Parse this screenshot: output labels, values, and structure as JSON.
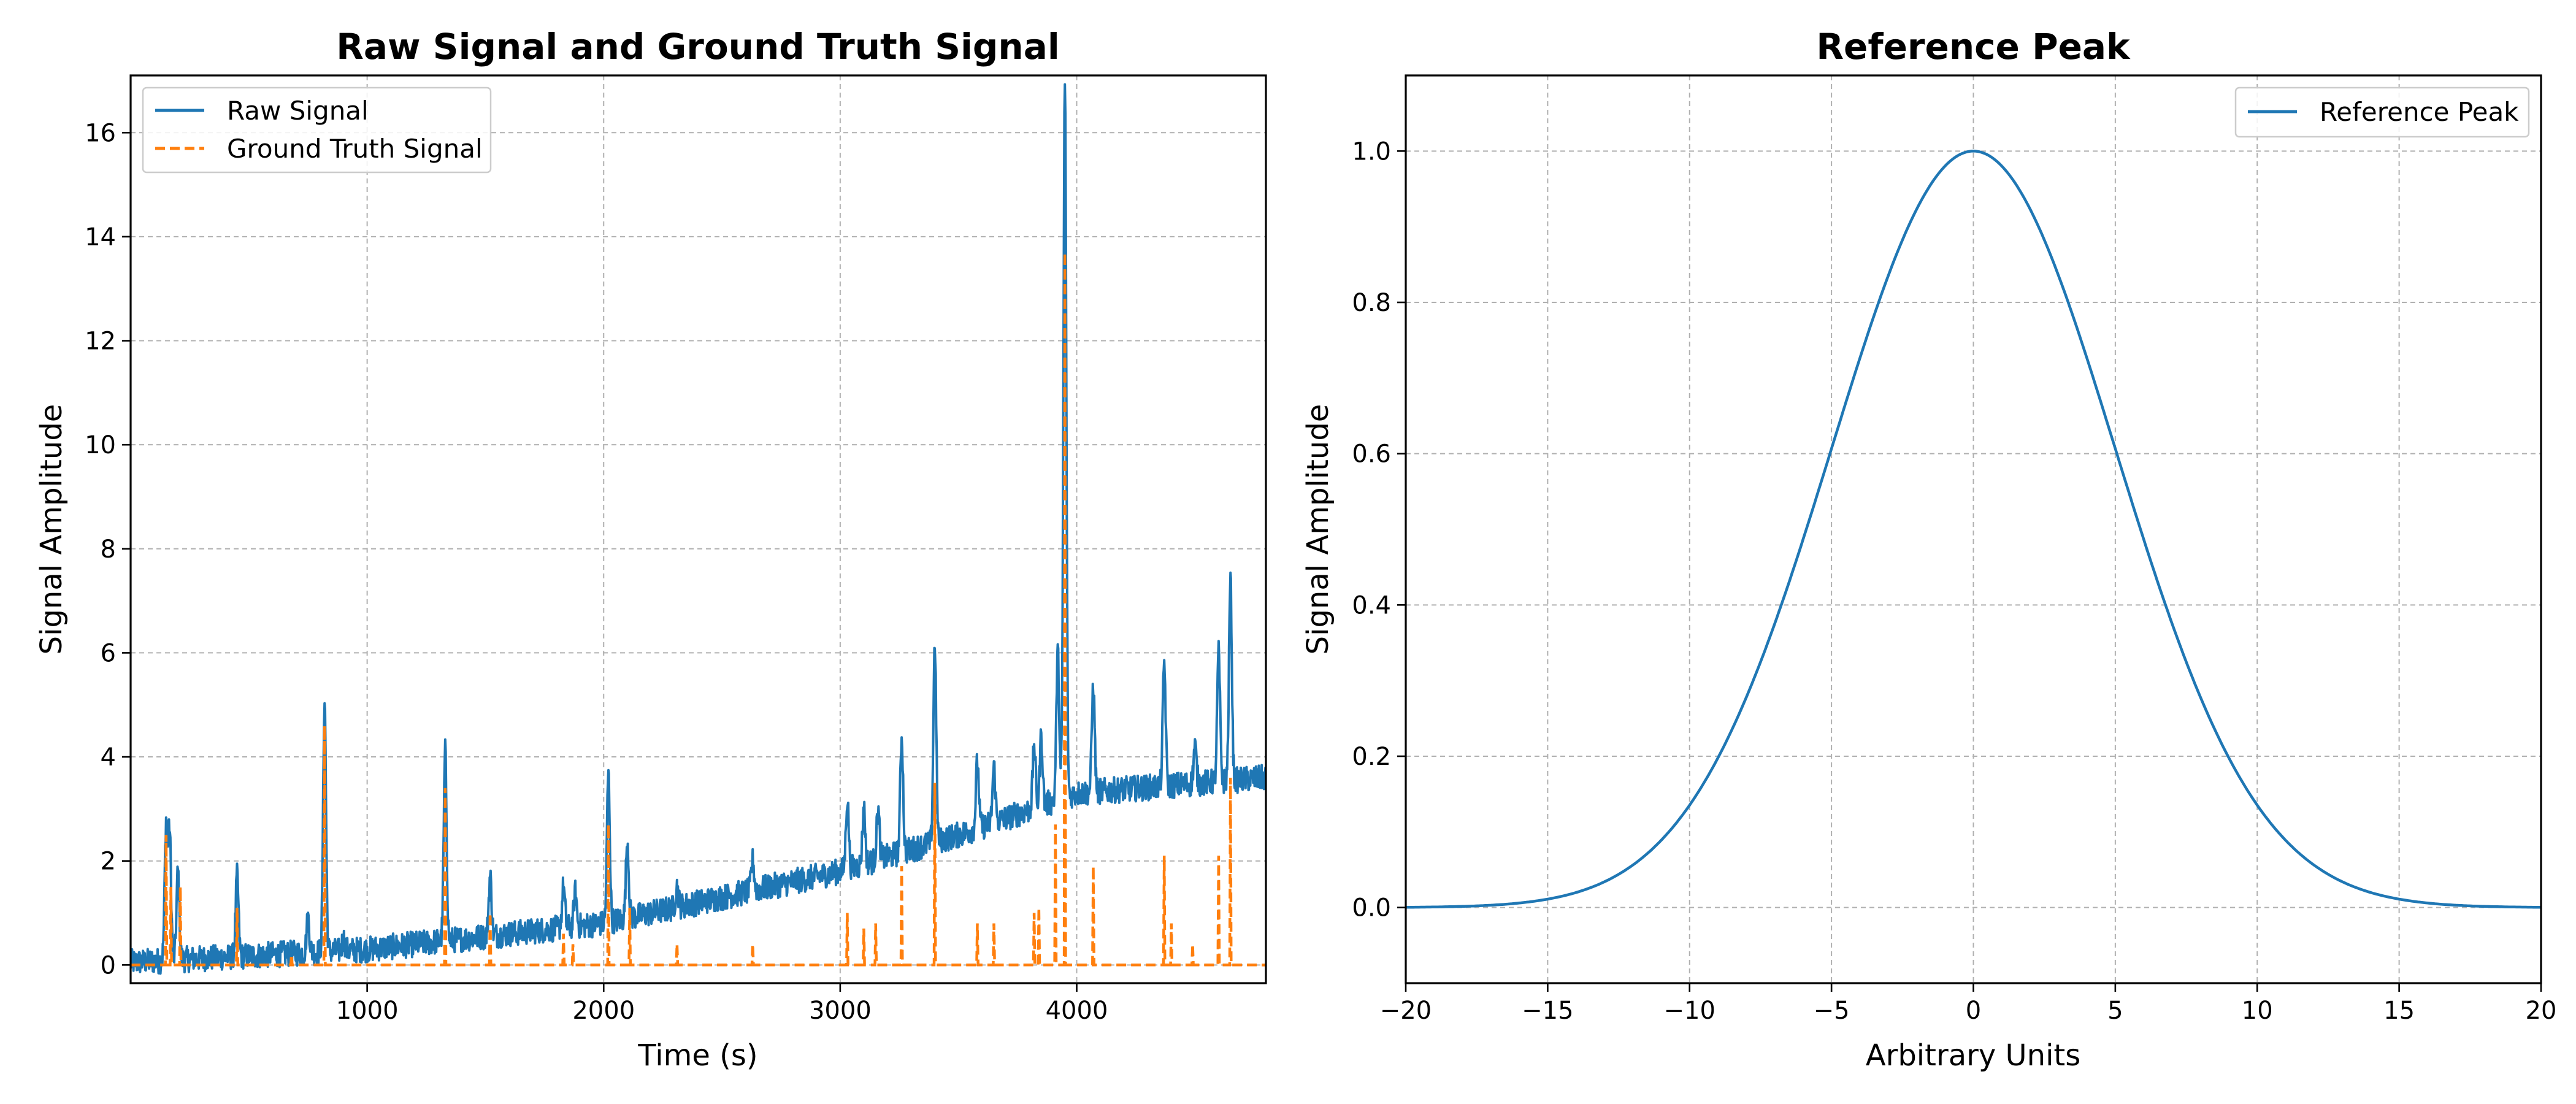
{
  "chart_data": [
    {
      "type": "line",
      "title": "Raw Signal and Ground Truth Signal",
      "xlabel": "Time (s)",
      "ylabel": "Signal Amplitude",
      "xlim": [
        0,
        4800
      ],
      "ylim": [
        -0.35,
        17.1
      ],
      "xticks": [
        1000,
        2000,
        3000,
        4000
      ],
      "yticks": [
        0,
        2,
        4,
        6,
        8,
        10,
        12,
        14,
        16
      ],
      "grid": true,
      "legend_position": "upper left",
      "series": [
        {
          "name": "Raw Signal",
          "style": "solid",
          "color": "#1f77b4",
          "baseline": {
            "x": [
              0,
              1000,
              2000,
              3000,
              3500,
              4000,
              4800
            ],
            "y": [
              0.05,
              0.3,
              0.8,
              1.8,
              2.5,
              3.3,
              3.6
            ]
          },
          "noise_band": 0.25,
          "peaks": [
            {
              "x": 150,
              "y": 2.7
            },
            {
              "x": 165,
              "y": 2.5
            },
            {
              "x": 200,
              "y": 1.8
            },
            {
              "x": 450,
              "y": 1.7
            },
            {
              "x": 750,
              "y": 0.9
            },
            {
              "x": 820,
              "y": 5.1
            },
            {
              "x": 900,
              "y": 0.5
            },
            {
              "x": 1330,
              "y": 4.1
            },
            {
              "x": 1520,
              "y": 1.7
            },
            {
              "x": 1830,
              "y": 1.5
            },
            {
              "x": 1880,
              "y": 1.4
            },
            {
              "x": 2020,
              "y": 3.7
            },
            {
              "x": 2100,
              "y": 2.4
            },
            {
              "x": 2310,
              "y": 1.5
            },
            {
              "x": 2630,
              "y": 2.0
            },
            {
              "x": 3030,
              "y": 3.2
            },
            {
              "x": 3100,
              "y": 3.0
            },
            {
              "x": 3160,
              "y": 3.0
            },
            {
              "x": 3260,
              "y": 4.4
            },
            {
              "x": 3400,
              "y": 6.2
            },
            {
              "x": 3580,
              "y": 3.9
            },
            {
              "x": 3650,
              "y": 3.8
            },
            {
              "x": 3820,
              "y": 4.2
            },
            {
              "x": 3850,
              "y": 4.4
            },
            {
              "x": 3920,
              "y": 6.0
            },
            {
              "x": 3950,
              "y": 17.0
            },
            {
              "x": 4070,
              "y": 5.4
            },
            {
              "x": 4370,
              "y": 5.8
            },
            {
              "x": 4500,
              "y": 4.2
            },
            {
              "x": 4600,
              "y": 6.0
            },
            {
              "x": 4650,
              "y": 7.4
            }
          ]
        },
        {
          "name": "Ground Truth Signal",
          "style": "dashed",
          "color": "#ff7f0e",
          "baseline": 0,
          "peaks": [
            {
              "x": 150,
              "y": 2.5
            },
            {
              "x": 170,
              "y": 1.5
            },
            {
              "x": 210,
              "y": 1.5
            },
            {
              "x": 450,
              "y": 1.1
            },
            {
              "x": 680,
              "y": 0.2
            },
            {
              "x": 820,
              "y": 4.6
            },
            {
              "x": 1330,
              "y": 3.4
            },
            {
              "x": 1520,
              "y": 1.0
            },
            {
              "x": 1830,
              "y": 0.6
            },
            {
              "x": 1870,
              "y": 0.4
            },
            {
              "x": 2020,
              "y": 2.7
            },
            {
              "x": 2110,
              "y": 1.1
            },
            {
              "x": 2310,
              "y": 0.4
            },
            {
              "x": 2630,
              "y": 0.4
            },
            {
              "x": 3030,
              "y": 1.0
            },
            {
              "x": 3100,
              "y": 0.7
            },
            {
              "x": 3150,
              "y": 0.8
            },
            {
              "x": 3260,
              "y": 1.9
            },
            {
              "x": 3400,
              "y": 3.5
            },
            {
              "x": 3580,
              "y": 0.8
            },
            {
              "x": 3650,
              "y": 0.8
            },
            {
              "x": 3820,
              "y": 1.0
            },
            {
              "x": 3840,
              "y": 1.1
            },
            {
              "x": 3910,
              "y": 2.7
            },
            {
              "x": 3950,
              "y": 13.7
            },
            {
              "x": 4070,
              "y": 1.9
            },
            {
              "x": 4370,
              "y": 2.1
            },
            {
              "x": 4400,
              "y": 0.8
            },
            {
              "x": 4490,
              "y": 0.4
            },
            {
              "x": 4600,
              "y": 2.1
            },
            {
              "x": 4650,
              "y": 3.6
            }
          ]
        }
      ]
    },
    {
      "type": "line",
      "title": "Reference Peak",
      "xlabel": "Arbitrary Units",
      "ylabel": "Signal Amplitude",
      "xlim": [
        -20,
        20
      ],
      "ylim": [
        -0.1,
        1.1
      ],
      "xticks": [
        -20,
        -15,
        -10,
        -5,
        0,
        5,
        10,
        15,
        20
      ],
      "yticks": [
        0.0,
        0.2,
        0.4,
        0.6,
        0.8,
        1.0
      ],
      "grid": true,
      "legend_position": "upper right",
      "series": [
        {
          "name": "Reference Peak",
          "style": "solid",
          "color": "#1f77b4",
          "gaussian": {
            "center": 0,
            "amplitude": 1.0,
            "sigma": 5.0
          },
          "x_range": [
            -20,
            20
          ]
        }
      ]
    }
  ],
  "tick_labels": {
    "left_x": [
      "1000",
      "2000",
      "3000",
      "4000"
    ],
    "left_y": [
      "0",
      "2",
      "4",
      "6",
      "8",
      "10",
      "12",
      "14",
      "16"
    ],
    "right_x": [
      "−20",
      "−15",
      "−10",
      "−5",
      "0",
      "5",
      "10",
      "15",
      "20"
    ],
    "right_y": [
      "0.0",
      "0.2",
      "0.4",
      "0.6",
      "0.8",
      "1.0"
    ]
  }
}
